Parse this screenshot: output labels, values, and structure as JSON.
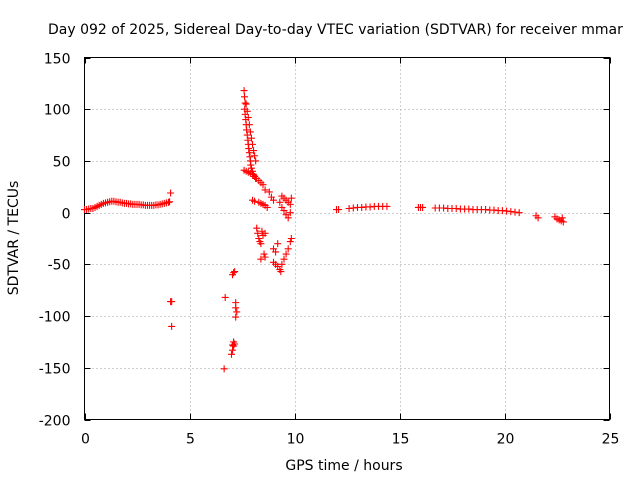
{
  "chart_data": {
    "type": "scatter",
    "title": "Day 092 of 2025, Sidereal Day-to-day VTEC variation (SDTVAR) for receiver mmar",
    "xlabel": "GPS time / hours",
    "ylabel": "SDTVAR / TECUs",
    "xlim": [
      0,
      25
    ],
    "ylim": [
      -200,
      150
    ],
    "grid": true,
    "marker": "+",
    "color": "#ff0000",
    "xticks": [
      0,
      5,
      10,
      15,
      20,
      25
    ],
    "xtick_labels": [
      "0",
      "5",
      "10",
      "15",
      "20",
      "25"
    ],
    "yticks": [
      150,
      100,
      50,
      0,
      -50,
      -100,
      -150,
      -200
    ],
    "ytick_labels": [
      "150",
      "100",
      "50",
      "0",
      "-50",
      "-100",
      "-150",
      "-200"
    ],
    "series": [
      {
        "name": "SDTVAR",
        "points": [
          [
            0.0,
            3
          ],
          [
            0.1,
            3
          ],
          [
            0.2,
            3.5
          ],
          [
            0.3,
            4
          ],
          [
            0.4,
            4
          ],
          [
            0.5,
            5
          ],
          [
            0.6,
            6
          ],
          [
            0.7,
            7
          ],
          [
            0.8,
            8
          ],
          [
            0.9,
            9
          ],
          [
            1.0,
            9.5
          ],
          [
            1.1,
            10
          ],
          [
            1.2,
            10.5
          ],
          [
            1.3,
            11
          ],
          [
            1.4,
            11
          ],
          [
            1.5,
            10.5
          ],
          [
            1.6,
            10
          ],
          [
            1.7,
            10
          ],
          [
            1.8,
            9.5
          ],
          [
            1.9,
            9
          ],
          [
            2.0,
            9
          ],
          [
            2.1,
            8.5
          ],
          [
            2.2,
            8.5
          ],
          [
            2.3,
            8
          ],
          [
            2.4,
            8
          ],
          [
            2.5,
            8
          ],
          [
            2.6,
            8
          ],
          [
            2.7,
            7.5
          ],
          [
            2.8,
            7.5
          ],
          [
            2.9,
            7
          ],
          [
            3.0,
            7
          ],
          [
            3.1,
            7
          ],
          [
            3.2,
            7
          ],
          [
            3.3,
            7
          ],
          [
            3.4,
            7.5
          ],
          [
            3.5,
            7.5
          ],
          [
            3.6,
            8
          ],
          [
            3.7,
            8.5
          ],
          [
            3.8,
            9
          ],
          [
            3.9,
            9.5
          ],
          [
            4.0,
            10
          ],
          [
            4.05,
            10.5
          ],
          [
            4.1,
            19
          ],
          [
            4.1,
            -86
          ],
          [
            4.15,
            -86
          ],
          [
            4.15,
            -110
          ],
          [
            6.65,
            -151
          ],
          [
            6.7,
            -82
          ],
          [
            7.0,
            -137
          ],
          [
            7.05,
            -133
          ],
          [
            7.05,
            -128
          ],
          [
            7.1,
            -125
          ],
          [
            7.1,
            -129
          ],
          [
            7.15,
            -127
          ],
          [
            7.05,
            -60
          ],
          [
            7.1,
            -58
          ],
          [
            7.15,
            -57
          ],
          [
            7.2,
            -87
          ],
          [
            7.2,
            -92
          ],
          [
            7.25,
            -96
          ],
          [
            7.2,
            -101
          ],
          [
            7.6,
            118
          ],
          [
            7.62,
            112
          ],
          [
            7.65,
            106
          ],
          [
            7.63,
            100
          ],
          [
            7.65,
            95
          ],
          [
            7.68,
            90
          ],
          [
            7.7,
            85
          ],
          [
            7.72,
            80
          ],
          [
            7.75,
            75
          ],
          [
            7.78,
            70
          ],
          [
            7.8,
            66
          ],
          [
            7.82,
            62
          ],
          [
            7.85,
            58
          ],
          [
            7.88,
            54
          ],
          [
            7.9,
            50
          ],
          [
            7.92,
            46
          ],
          [
            7.95,
            43
          ],
          [
            8.0,
            40
          ],
          [
            8.05,
            37
          ],
          [
            8.1,
            35
          ],
          [
            8.15,
            33
          ],
          [
            7.7,
            105
          ],
          [
            7.75,
            98
          ],
          [
            7.8,
            92
          ],
          [
            7.85,
            85
          ],
          [
            7.9,
            78
          ],
          [
            7.95,
            72
          ],
          [
            8.0,
            66
          ],
          [
            8.05,
            60
          ],
          [
            8.1,
            55
          ],
          [
            8.15,
            50
          ],
          [
            7.6,
            41
          ],
          [
            7.7,
            40
          ],
          [
            7.8,
            39
          ],
          [
            7.9,
            38
          ],
          [
            8.0,
            37
          ],
          [
            8.1,
            35
          ],
          [
            8.2,
            33
          ],
          [
            8.3,
            31
          ],
          [
            8.4,
            29
          ],
          [
            8.5,
            27
          ],
          [
            8.6,
            22
          ],
          [
            8.8,
            20
          ],
          [
            8.9,
            15
          ],
          [
            9.0,
            12
          ],
          [
            8.0,
            12
          ],
          [
            8.1,
            11
          ],
          [
            8.3,
            10
          ],
          [
            8.4,
            9
          ],
          [
            8.5,
            8
          ],
          [
            8.6,
            7
          ],
          [
            8.7,
            5
          ],
          [
            8.2,
            -15
          ],
          [
            8.25,
            -20
          ],
          [
            8.3,
            -25
          ],
          [
            8.35,
            -28
          ],
          [
            8.4,
            -30
          ],
          [
            8.45,
            -18
          ],
          [
            8.5,
            -22
          ],
          [
            8.6,
            -20
          ],
          [
            8.4,
            -45
          ],
          [
            8.55,
            -40
          ],
          [
            8.6,
            -43
          ],
          [
            9.0,
            -35
          ],
          [
            9.1,
            -38
          ],
          [
            9.2,
            -30
          ],
          [
            9.0,
            -48
          ],
          [
            9.1,
            -50
          ],
          [
            9.2,
            -52
          ],
          [
            9.3,
            -55
          ],
          [
            9.35,
            -57
          ],
          [
            9.4,
            -50
          ],
          [
            9.5,
            -45
          ],
          [
            9.6,
            -40
          ],
          [
            9.7,
            -35
          ],
          [
            9.8,
            -28
          ],
          [
            9.85,
            -25
          ],
          [
            9.4,
            16
          ],
          [
            9.5,
            14
          ],
          [
            9.6,
            12
          ],
          [
            9.7,
            10
          ],
          [
            9.8,
            8
          ],
          [
            9.4,
            5
          ],
          [
            9.5,
            2
          ],
          [
            9.6,
            -2
          ],
          [
            9.7,
            -5
          ],
          [
            9.8,
            0
          ],
          [
            9.85,
            14
          ],
          [
            9.3,
            10
          ],
          [
            12.0,
            3
          ],
          [
            12.1,
            3
          ],
          [
            12.6,
            4
          ],
          [
            12.8,
            4.5
          ],
          [
            13.0,
            5
          ],
          [
            13.2,
            5
          ],
          [
            13.4,
            5.5
          ],
          [
            13.6,
            5.5
          ],
          [
            13.8,
            6
          ],
          [
            14.0,
            6
          ],
          [
            14.2,
            6
          ],
          [
            14.4,
            6
          ],
          [
            15.9,
            5
          ],
          [
            16.0,
            5
          ],
          [
            16.1,
            5
          ],
          [
            16.7,
            4.5
          ],
          [
            16.9,
            4.5
          ],
          [
            17.1,
            4.5
          ],
          [
            17.3,
            4
          ],
          [
            17.5,
            4
          ],
          [
            17.7,
            4
          ],
          [
            17.9,
            3.5
          ],
          [
            18.1,
            3.5
          ],
          [
            18.3,
            3.5
          ],
          [
            18.5,
            3
          ],
          [
            18.7,
            3
          ],
          [
            18.9,
            3
          ],
          [
            19.1,
            3
          ],
          [
            19.3,
            2.5
          ],
          [
            19.5,
            2.5
          ],
          [
            19.7,
            2
          ],
          [
            19.9,
            2
          ],
          [
            20.1,
            1.5
          ],
          [
            20.3,
            1
          ],
          [
            20.5,
            0.5
          ],
          [
            20.7,
            0
          ],
          [
            21.5,
            -3
          ],
          [
            21.6,
            -5
          ],
          [
            22.4,
            -4
          ],
          [
            22.5,
            -6
          ],
          [
            22.6,
            -7
          ],
          [
            22.7,
            -8
          ],
          [
            22.8,
            -9
          ],
          [
            22.75,
            -5
          ]
        ]
      }
    ]
  }
}
